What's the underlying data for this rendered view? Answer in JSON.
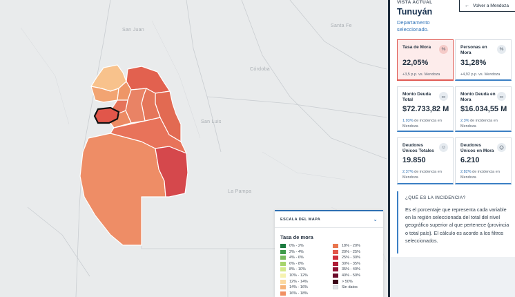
{
  "map": {
    "labels": {
      "san_juan": "San Juan",
      "santa_fe": "Santa Fe",
      "cordoba": "Córdoba",
      "san_luis": "San Luis",
      "la_pampa": "La Pampa"
    }
  },
  "legend": {
    "title": "ESCALA DEL MAPA",
    "subtitle": "Tasa de mora",
    "items": [
      {
        "label": "0% - 2%",
        "color": "#1b7a3e"
      },
      {
        "label": "18% - 20%",
        "color": "#e9764e"
      },
      {
        "label": "2% - 4%",
        "color": "#3f9b4a"
      },
      {
        "label": "20% - 25%",
        "color": "#e2564a"
      },
      {
        "label": "4% - 6%",
        "color": "#79bb5d"
      },
      {
        "label": "25% - 30%",
        "color": "#cf2e3b"
      },
      {
        "label": "6% - 8%",
        "color": "#a7d46c"
      },
      {
        "label": "30% - 35%",
        "color": "#b01c36"
      },
      {
        "label": "8% - 10%",
        "color": "#d5e98c"
      },
      {
        "label": "35% - 40%",
        "color": "#8f1233"
      },
      {
        "label": "10% - 12%",
        "color": "#f6f2b0"
      },
      {
        "label": "40% - 50%",
        "color": "#6a0a2a"
      },
      {
        "label": "12% - 14%",
        "color": "#fbd9a0"
      },
      {
        "label": "> 50%",
        "color": "#3a0517"
      },
      {
        "label": "14% - 16%",
        "color": "#f6b47a"
      },
      {
        "label": "Sin datos",
        "color": "#e1e4e8"
      },
      {
        "label": "16% - 18%",
        "color": "#f09063"
      }
    ]
  },
  "panel": {
    "kicker": "VISTA ACTUAL",
    "region": "Tunuyán",
    "region_sub": "Departamento seleccionado.",
    "back_label": "Volver a Mendoza",
    "cards": {
      "tasa": {
        "label": "Tasa de Mora",
        "value": "22,05%",
        "note": "+3,5 p.p. vs. Mendoza",
        "icon": "%"
      },
      "personas": {
        "label": "Personas en Mora",
        "value": "31,28%",
        "note": "+4,92 p.p. vs. Mendoza",
        "icon": "%"
      },
      "monto_total": {
        "label": "Monto Deuda Total",
        "value": "$72.733,82 M",
        "note_pct": "1,93%",
        "note_rest": " de incidencia en Mendoza",
        "icon": "▭"
      },
      "monto_mora": {
        "label": "Monto Deuda en Mora",
        "value": "$16.034,55 M",
        "note_pct": "2,3%",
        "note_rest": " de incidencia en Mendoza",
        "icon": "▭"
      },
      "deudores": {
        "label": "Deudores Únicos Totales",
        "value": "19.850",
        "note_pct": "2,37%",
        "note_rest": " de incidencia en Mendoza",
        "icon": "☺"
      },
      "deudores_mora": {
        "label": "Deudores Únicos en Mora",
        "value": "6.210",
        "note_pct": "2,82%",
        "note_rest": " de incidencia en Mendoza",
        "icon": "☹"
      }
    },
    "info": {
      "title": "¿QUÉ ES LA INCIDENCIA?",
      "body": "Es el porcentaje que representa cada variable en la región seleccionada del total del nivel geográfico superior al que pertenece (provincia o total país). El cálculo es acorde a los filtros seleccionados."
    }
  }
}
